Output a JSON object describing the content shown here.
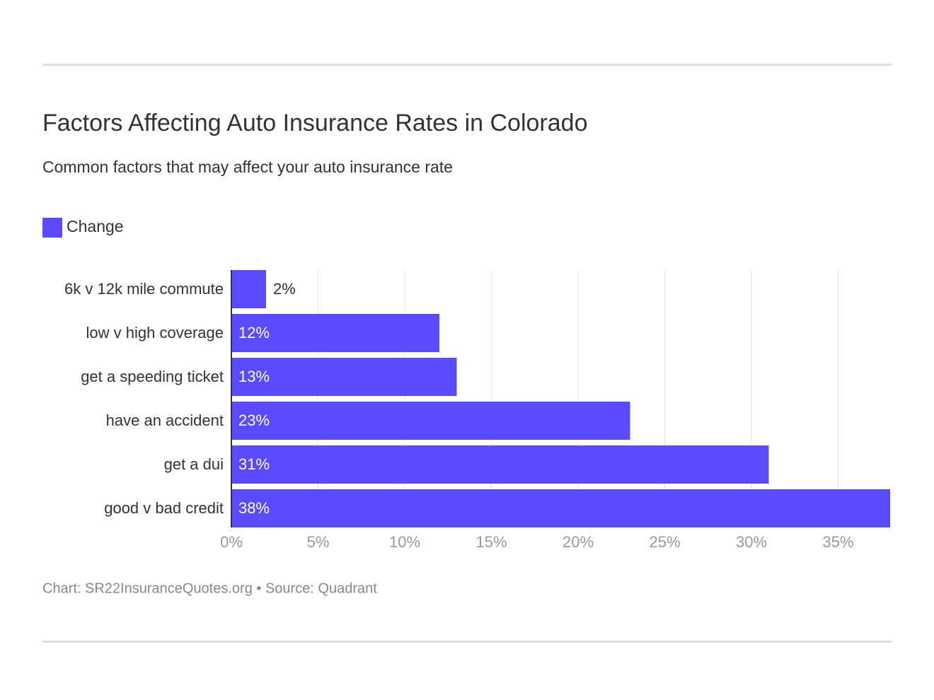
{
  "chart_data": {
    "type": "bar",
    "orientation": "horizontal",
    "title": "Factors Affecting Auto Insurance Rates in Colorado",
    "subtitle": "Common factors that may affect your auto insurance rate",
    "categories": [
      "6k v 12k mile commute",
      "low v high coverage",
      "get a speeding ticket",
      "have an accident",
      "get a dui",
      "good v bad credit"
    ],
    "series": [
      {
        "name": "Change",
        "color": "#5b4bff",
        "values": [
          2,
          12,
          13,
          23,
          31,
          38
        ],
        "value_labels": [
          "2%",
          "12%",
          "13%",
          "23%",
          "31%",
          "38%"
        ]
      }
    ],
    "xlim": [
      0,
      38
    ],
    "xticks": [
      {
        "value": 0,
        "label": "0%"
      },
      {
        "value": 5,
        "label": "5%"
      },
      {
        "value": 10,
        "label": "10%"
      },
      {
        "value": 15,
        "label": "15%"
      },
      {
        "value": 20,
        "label": "20%"
      },
      {
        "value": 25,
        "label": "25%"
      },
      {
        "value": 30,
        "label": "30%"
      },
      {
        "value": 35,
        "label": "35%"
      }
    ],
    "grid": true,
    "footer": "Chart: SR22InsuranceQuotes.org • Source: Quadrant"
  }
}
